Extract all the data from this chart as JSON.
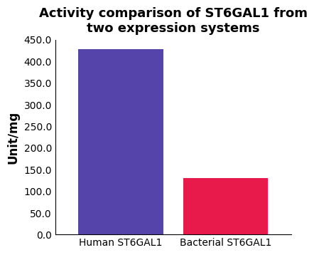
{
  "title": "Activity comparison of ST6GAL1 from\ntwo expression systems",
  "categories": [
    "Human ST6GAL1",
    "Bacterial ST6GAL1"
  ],
  "values": [
    428,
    130
  ],
  "bar_colors": [
    "#5544aa",
    "#e8194b"
  ],
  "ylabel": "Unit/mg",
  "ylim": [
    0,
    450
  ],
  "yticks": [
    0.0,
    50.0,
    100.0,
    150.0,
    200.0,
    250.0,
    300.0,
    350.0,
    400.0,
    450.0
  ],
  "title_fontsize": 13,
  "label_fontsize": 12,
  "tick_fontsize": 10,
  "background_color": "#ffffff",
  "bar_width": 0.65,
  "x_positions": [
    0.3,
    1.1
  ],
  "xlim": [
    -0.2,
    1.6
  ]
}
